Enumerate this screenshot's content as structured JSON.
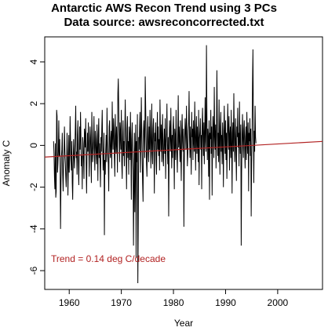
{
  "chart_data": {
    "type": "line",
    "title": "Antarctic AWS Recon Trend using 3 PCs",
    "subtitle": "Data source: awsreconcorrected.txt",
    "xlabel": "Year",
    "ylabel": "Anomaly C",
    "xlim": [
      1955.3,
      2008.6
    ],
    "ylim": [
      -6.9,
      5.2
    ],
    "x_ticks": [
      1960,
      1970,
      1980,
      1990,
      2000
    ],
    "y_ticks": [
      -6,
      -4,
      -2,
      0,
      2,
      4
    ],
    "grid": false,
    "legend": "none",
    "annotation": "Trend = 0.14  deg C/decade",
    "series": [
      {
        "values_role": "monthly anomaly, 1957–2006 (approximate reading)",
        "color": "#000000",
        "x_start": 1957.0,
        "x_step": 0.0833333,
        "y": [
          0.2,
          -0.4,
          -1.5,
          -2.1,
          0.1,
          -2.5,
          -2.2,
          1.7,
          1.4,
          -1.3,
          -0.9,
          -0.3,
          1.2,
          -0.5,
          0.3,
          -0.8,
          -4.0,
          -1.8,
          -0.6,
          -0.2,
          0.6,
          -1.4,
          -2.2,
          -0.9,
          -0.5,
          0.9,
          -0.2,
          -0.8,
          -1.5,
          -2.0,
          -1.0,
          0.6,
          -0.4,
          -2.4,
          -1.0,
          0.5,
          -1.3,
          -0.6,
          1.4,
          0.3,
          -0.7,
          -1.2,
          0.2,
          -1.8,
          -2.6,
          -0.9,
          0.3,
          -0.5,
          -1.1,
          -0.2,
          0.8,
          1.9,
          -0.6,
          -0.3,
          -1.4,
          0.5,
          1.2,
          -0.8,
          -1.9,
          -0.4,
          0.9,
          -0.2,
          1.6,
          0.3,
          -1.0,
          -0.5,
          -2.1,
          0.4,
          0.1,
          -0.7,
          -1.6,
          0.8,
          0.5,
          -0.1,
          1.3,
          -0.9,
          -2.3,
          -0.4,
          0.6,
          -0.3,
          1.1,
          0.2,
          -1.5,
          -0.2,
          0.9,
          0.4,
          -0.6,
          -1.8,
          1.6,
          0.6,
          -0.8,
          -0.3,
          0.2,
          1.4,
          -0.5,
          -1.2,
          0.7,
          0.3,
          -0.4,
          -0.9,
          1.0,
          -0.2,
          -1.7,
          0.5,
          1.3,
          -0.6,
          0.1,
          -0.9,
          -2.0,
          0.4,
          -0.3,
          0.8,
          1.7,
          -0.1,
          -1.2,
          -0.5,
          0.6,
          -4.3,
          -0.7,
          -1.4,
          -0.2,
          0.5,
          -0.8,
          1.8,
          0.2,
          -0.4,
          -0.9,
          -2.2,
          0.9,
          1.2,
          -0.3,
          -0.6,
          0.4,
          0.7,
          -1.1,
          2.1,
          0.5,
          -0.2,
          1.3,
          0.8,
          -0.6,
          -1.5,
          1.5,
          0.3,
          -0.4,
          0.9,
          0.1,
          -1.3,
          2.5,
          3.2,
          1.8,
          0.4,
          -0.8,
          1.1,
          0.6,
          -0.2,
          1.7,
          -0.9,
          -1.6,
          0.3,
          1.2,
          -0.5,
          0.2,
          -1.0,
          0.7,
          2.2,
          0.5,
          -0.3,
          -2.1,
          0.8,
          1.4,
          -0.6,
          0.2,
          -1.4,
          0.9,
          0.4,
          -0.7,
          1.6,
          -0.2,
          -2.6,
          0.3,
          1.1,
          -0.4,
          -1.2,
          -4.8,
          -2.0,
          0.6,
          -3.2,
          -0.3,
          1.0,
          -5.4,
          0.2,
          -0.8,
          1.5,
          -6.6,
          -3.5,
          0.4,
          -0.2,
          0.9,
          1.6,
          -1.3,
          -0.1,
          2.3,
          0.8,
          -0.5,
          -1.8,
          -2.7,
          0.7,
          1.2,
          0.3,
          -0.6,
          3.3,
          1.9,
          0.4,
          -0.9,
          -1.5,
          0.6,
          1.4,
          -0.3,
          -0.8,
          0.9,
          -0.2,
          1.7,
          0.5,
          -1.1,
          0.2,
          2.0,
          -0.4,
          -0.9,
          0.8,
          1.3,
          -0.1,
          -2.3,
          0.6,
          0.2,
          1.1,
          -0.7,
          -1.4,
          0.4,
          1.6,
          -0.2,
          0.9,
          -0.5,
          0.3,
          -1.2,
          2.2,
          0.7,
          -0.3,
          1.0,
          -0.8,
          0.5,
          1.5,
          -0.6,
          -1.0,
          0.2,
          0.8,
          -0.4,
          1.3,
          -1.6,
          0.1,
          0.6,
          2.0,
          -0.2,
          -0.9,
          0.4,
          -3.4,
          -0.5,
          1.2,
          0.7,
          -0.3,
          1.8,
          0.3,
          -1.1,
          0.5,
          -0.6,
          0.9,
          1.4,
          -0.2,
          -2.1,
          0.8,
          0.4,
          -0.7,
          1.7,
          0.1,
          -0.4,
          -1.3,
          0.6,
          2.4,
          -0.1,
          0.9,
          0.3,
          -0.8,
          1.2,
          -0.5,
          -1.7,
          0.7,
          1.5,
          0.2,
          -0.3,
          0.8,
          -3.9,
          -0.9,
          0.4,
          1.3,
          0.6,
          -0.2,
          1.9,
          0.5,
          -1.0,
          -0.4,
          0.7,
          1.1,
          2.6,
          0.3,
          -0.6,
          0.9,
          -0.1,
          -1.4,
          1.6,
          0.4,
          0.8,
          -0.7,
          1.2,
          0.2,
          -0.3,
          2.1,
          0.6,
          -1.2,
          0.5,
          1.4,
          -0.4,
          0.9,
          0.1,
          -0.8,
          1.7,
          -1.9,
          0.3,
          0.7,
          1.3,
          -0.2,
          0.5,
          -2.1,
          0.9,
          1.8,
          0.4,
          -0.5,
          1.1,
          -0.9,
          0.6,
          2.3,
          0.2,
          -0.3,
          4.8,
          1.5,
          -0.7,
          0.8,
          0.4,
          -1.5,
          1.2,
          -2.6,
          0.6,
          0.3,
          1.7,
          -0.4,
          0.9,
          -2.4,
          0.1,
          1.4,
          0.7,
          -0.6,
          2.8,
          0.5,
          -0.2,
          1.0,
          -1.1,
          0.4,
          3.6,
          1.3,
          -0.5,
          0.6,
          -0.8,
          2.2,
          0.3,
          -1.4,
          0.9,
          1.6,
          -0.3,
          0.5,
          -0.9,
          1.1,
          0.2,
          -2.0,
          0.7,
          1.9,
          0.4,
          -0.4,
          1.2,
          -0.7,
          0.6,
          -1.6,
          0.3,
          2.0,
          0.8,
          -0.2,
          1.4,
          -1.2,
          0.5,
          0.9,
          -0.6,
          1.7,
          0.1,
          -2.3,
          0.6,
          1.1,
          -0.3,
          2.5,
          0.7,
          -0.8,
          0.2,
          1.3,
          -0.5,
          -1.7,
          0.9,
          0.4,
          1.8,
          -0.1,
          0.6,
          -1.0,
          2.1,
          0.3,
          -0.4,
          1.0,
          -4.8,
          -1.3,
          0.5,
          1.5,
          0.2,
          -0.6,
          0.8,
          1.2,
          -0.2,
          -1.1,
          0.4,
          0.9,
          -0.7,
          1.6,
          0.3,
          -0.4,
          1.1,
          -2.2,
          0.6,
          0.2,
          1.3,
          -0.5,
          0.8,
          -3.4,
          -0.9,
          0.5,
          2.9,
          4.6,
          1.2,
          -1.8,
          0.7,
          -0.3,
          1.9,
          0.4,
          0.1
        ]
      },
      {
        "values_role": "linear trend line",
        "color": "#b22222",
        "x": [
          1955.3,
          2008.6
        ],
        "y": [
          -0.56,
          0.19
        ]
      }
    ]
  },
  "colors": {
    "data_line": "#000000",
    "trend_line": "#b22222",
    "annotation": "#b22222",
    "frame": "#000000",
    "background": "#ffffff"
  }
}
